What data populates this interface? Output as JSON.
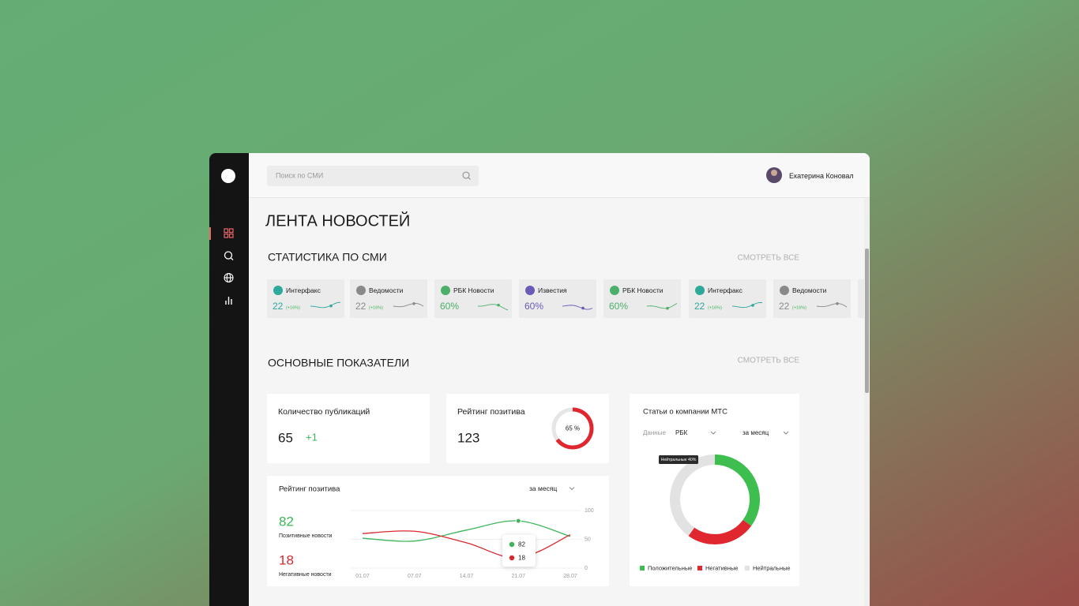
{
  "header": {
    "search_placeholder": "Поиск по СМИ",
    "user_name": "Екатерина Коновал"
  },
  "page_title": "ЛЕНТА НОВОСТЕЙ",
  "media_stats": {
    "title": "СТАТИСТИКА ПО СМИ",
    "link": "СМОТРЕТЬ ВСЕ",
    "cards": [
      {
        "name": "Интерфакс",
        "value": "22",
        "change": "(+16%)",
        "color": "#2ea89a"
      },
      {
        "name": "Ведомости",
        "value": "22",
        "change": "(+16%)",
        "color": "#8a8a8a"
      },
      {
        "name": "РБК Новости",
        "value": "60%",
        "color": "#4caf6a"
      },
      {
        "name": "Известия",
        "value": "60%",
        "color": "#6c5ab8"
      },
      {
        "name": "РБК Новости",
        "value": "60%",
        "color": "#4caf6a"
      },
      {
        "name": "Интерфакс",
        "value": "22",
        "change": "(+16%)",
        "color": "#2ea89a"
      },
      {
        "name": "Ведомости",
        "value": "22",
        "change": "(+16%)",
        "color": "#8a8a8a"
      }
    ]
  },
  "indicators": {
    "title": "ОСНОВНЫЕ ПОКАЗАТЕЛИ",
    "link": "СМОТРЕТЬ ВСЕ"
  },
  "publications": {
    "title": "Количество публикаций",
    "value": 65,
    "change": "+1"
  },
  "rating": {
    "title": "Рейтинг позитива",
    "value": 123,
    "gauge": {
      "value": 65,
      "label": "65 %"
    },
    "color": "#e0262f"
  },
  "chart_data": [
    {
      "type": "line",
      "title": "Рейтинг позитива",
      "period": "за месяц",
      "x": [
        "01.07",
        "07.07",
        "14.07",
        "21.07",
        "28.07"
      ],
      "ylim": [
        0,
        100
      ],
      "yticks": [
        0,
        50,
        100
      ],
      "grid": true,
      "series": [
        {
          "name": "Позитивные новости",
          "color": "#3cb55a",
          "values": [
            52,
            47,
            66,
            82,
            55
          ]
        },
        {
          "name": "Негативные новости",
          "color": "#d9282f",
          "values": [
            60,
            64,
            44,
            18,
            58
          ]
        }
      ]
    },
    {
      "type": "pie",
      "title": "Статьи о компании МТС",
      "filter_label": "Данные",
      "source": "РБК",
      "period": "за месяц",
      "tooltip": "Нейтральные 40%",
      "categories": [
        "Положительные",
        "Негативные",
        "Нейтральные"
      ],
      "values": [
        35,
        25,
        40
      ],
      "colors": [
        "#3dbe4f",
        "#e0262f",
        "#e2e2e2"
      ]
    }
  ]
}
